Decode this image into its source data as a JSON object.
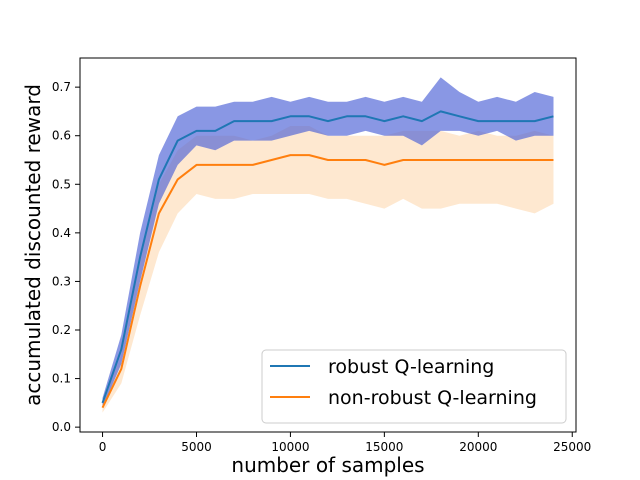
{
  "chart_data": {
    "type": "line",
    "title": "",
    "xlabel": "number of samples",
    "ylabel": "accumulated discounted reward",
    "xlim": [
      -1200,
      25200
    ],
    "ylim": [
      -0.01,
      0.76
    ],
    "xticks": [
      0,
      5000,
      10000,
      15000,
      20000,
      25000
    ],
    "yticks": [
      0.0,
      0.1,
      0.2,
      0.3,
      0.4,
      0.5,
      0.6,
      0.7
    ],
    "xtick_labels": [
      "0",
      "5000",
      "10000",
      "15000",
      "20000",
      "25000"
    ],
    "ytick_labels": [
      "0.0",
      "0.1",
      "0.2",
      "0.3",
      "0.4",
      "0.5",
      "0.6",
      "0.7"
    ],
    "grid": false,
    "legend_position": "bottom-right",
    "series": [
      {
        "name": "robust Q-learning",
        "color": "#1f77b4",
        "band_color": "#4a5fd6",
        "x": [
          0,
          1000,
          2000,
          3000,
          4000,
          5000,
          6000,
          7000,
          8000,
          9000,
          10000,
          11000,
          12000,
          13000,
          14000,
          15000,
          16000,
          17000,
          18000,
          19000,
          20000,
          21000,
          22000,
          23000,
          24000
        ],
        "mean": [
          0.05,
          0.16,
          0.35,
          0.51,
          0.59,
          0.61,
          0.61,
          0.63,
          0.63,
          0.63,
          0.64,
          0.64,
          0.63,
          0.64,
          0.64,
          0.63,
          0.64,
          0.63,
          0.65,
          0.64,
          0.63,
          0.63,
          0.63,
          0.63,
          0.64
        ],
        "upper": [
          0.06,
          0.19,
          0.4,
          0.56,
          0.64,
          0.66,
          0.66,
          0.67,
          0.67,
          0.68,
          0.67,
          0.68,
          0.67,
          0.67,
          0.68,
          0.67,
          0.68,
          0.67,
          0.72,
          0.69,
          0.67,
          0.68,
          0.67,
          0.69,
          0.68
        ],
        "lower": [
          0.04,
          0.13,
          0.3,
          0.46,
          0.54,
          0.58,
          0.57,
          0.59,
          0.59,
          0.59,
          0.6,
          0.61,
          0.6,
          0.6,
          0.61,
          0.6,
          0.6,
          0.58,
          0.61,
          0.61,
          0.6,
          0.61,
          0.59,
          0.6,
          0.6
        ]
      },
      {
        "name": "non-robust Q-learning",
        "color": "#ff7f0e",
        "band_color": "#fdd9b0",
        "x": [
          0,
          1000,
          2000,
          3000,
          4000,
          5000,
          6000,
          7000,
          8000,
          9000,
          10000,
          11000,
          12000,
          13000,
          14000,
          15000,
          16000,
          17000,
          18000,
          19000,
          20000,
          21000,
          22000,
          23000,
          24000
        ],
        "mean": [
          0.04,
          0.12,
          0.29,
          0.44,
          0.51,
          0.54,
          0.54,
          0.54,
          0.54,
          0.55,
          0.56,
          0.56,
          0.55,
          0.55,
          0.55,
          0.54,
          0.55,
          0.55,
          0.55,
          0.55,
          0.55,
          0.55,
          0.55,
          0.55,
          0.55
        ],
        "upper": [
          0.05,
          0.15,
          0.34,
          0.5,
          0.57,
          0.6,
          0.6,
          0.6,
          0.59,
          0.6,
          0.62,
          0.62,
          0.6,
          0.6,
          0.6,
          0.6,
          0.61,
          0.61,
          0.61,
          0.6,
          0.61,
          0.6,
          0.6,
          0.61,
          0.6
        ],
        "lower": [
          0.03,
          0.09,
          0.23,
          0.36,
          0.44,
          0.48,
          0.47,
          0.47,
          0.48,
          0.48,
          0.48,
          0.48,
          0.47,
          0.47,
          0.46,
          0.45,
          0.47,
          0.45,
          0.45,
          0.46,
          0.46,
          0.46,
          0.45,
          0.44,
          0.46
        ]
      }
    ]
  }
}
